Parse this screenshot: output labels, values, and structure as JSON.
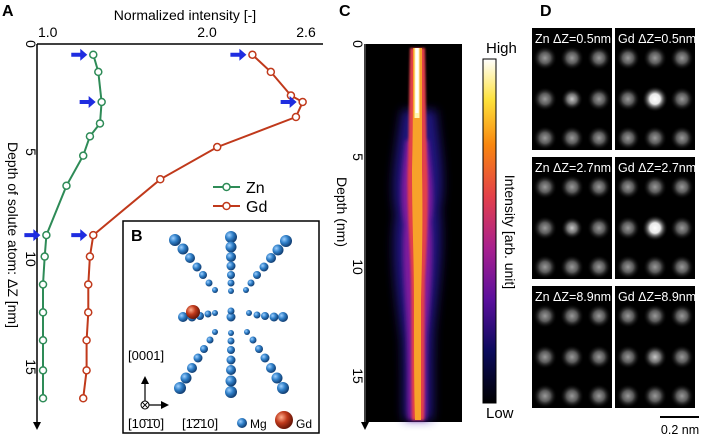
{
  "panels": {
    "A": {
      "letter": "A",
      "x_axis_title": "Normalized intensity [-]",
      "y_axis_title": "Depth of solute atom: ΔZ [nm]",
      "x_ticks": [
        "1.0",
        "2.0",
        "2.6"
      ],
      "y_ticks": [
        "0",
        "5",
        "10",
        "15"
      ],
      "legend": {
        "zn": "Zn",
        "gd": "Gd"
      },
      "colors": {
        "zn": "#2e8b57",
        "gd": "#c0391b",
        "arrow": "#1f2de0"
      }
    },
    "B": {
      "letter": "B",
      "dir_0001": "[0001]",
      "dir_10m10": "[10̄1̄0]",
      "dir_1m210": "[1̄2̄10]",
      "legend_mg": "Mg",
      "legend_gd": "Gd",
      "colors": {
        "mg": "#2f7fc8",
        "gd": "#c0391b"
      }
    },
    "C": {
      "letter": "C",
      "y_axis_title": "Depth (nm)",
      "y_ticks": [
        "0",
        "5",
        "10",
        "15"
      ],
      "colorbar_title": "Intensity [arb. unit]",
      "colorbar_high": "High",
      "colorbar_low": "Low"
    },
    "D": {
      "letter": "D",
      "images": [
        {
          "label": "Zn ΔZ=0.5nm"
        },
        {
          "label": "Gd ΔZ=0.5nm"
        },
        {
          "label": "Zn ΔZ=2.7nm"
        },
        {
          "label": "Gd ΔZ=2.7nm"
        },
        {
          "label": "Zn ΔZ=8.9nm"
        },
        {
          "label": "Gd ΔZ=8.9nm"
        }
      ],
      "scalebar": "0.2 nm"
    }
  },
  "chart_data": {
    "type": "line",
    "title": "",
    "xlabel": "Normalized intensity [-]",
    "ylabel": "Depth of solute atom: ΔZ [nm]",
    "xlim": [
      1.0,
      2.6
    ],
    "ylim": [
      0,
      18
    ],
    "series": [
      {
        "name": "Zn",
        "x": [
          1.33,
          1.36,
          1.38,
          1.37,
          1.31,
          1.27,
          1.17,
          1.05,
          1.04,
          1.03,
          1.03,
          1.03,
          1.03,
          1.03
        ],
        "y": [
          0.5,
          1.3,
          2.7,
          3.7,
          4.3,
          5.2,
          6.6,
          8.9,
          9.9,
          11.2,
          12.5,
          13.8,
          15.2,
          16.5
        ]
      },
      {
        "name": "Gd",
        "x": [
          2.28,
          2.39,
          2.51,
          2.58,
          2.54,
          2.07,
          1.73,
          1.33,
          1.31,
          1.3,
          1.3,
          1.29,
          1.29,
          1.27
        ],
        "y": [
          0.5,
          1.3,
          2.4,
          2.7,
          3.4,
          4.8,
          6.3,
          8.9,
          9.9,
          11.2,
          12.5,
          13.8,
          15.2,
          16.5
        ]
      }
    ],
    "arrows_at_depth": [
      0.5,
      2.7,
      8.9
    ]
  }
}
